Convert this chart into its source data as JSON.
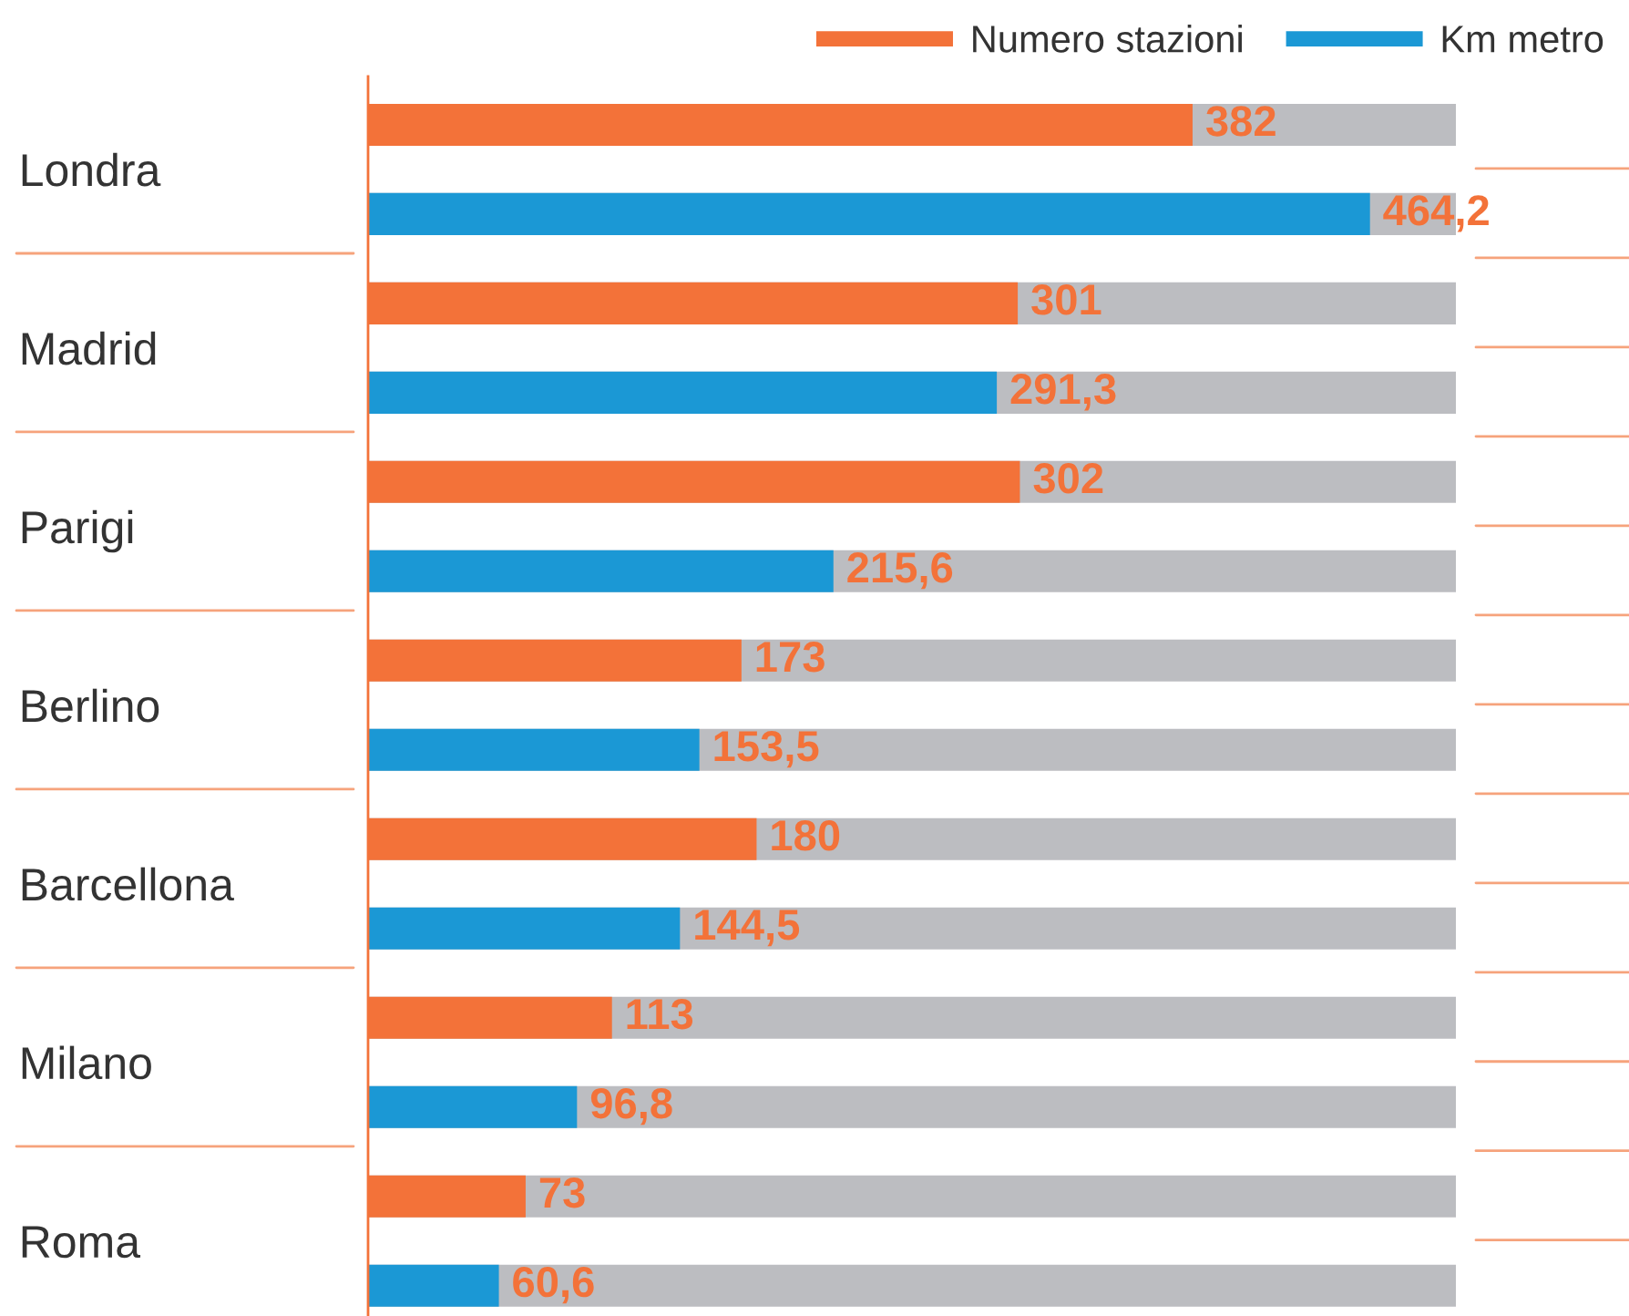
{
  "chart_data": {
    "type": "bar",
    "orientation": "horizontal",
    "categories": [
      "Londra",
      "Madrid",
      "Parigi",
      "Berlino",
      "Barcellona",
      "Milano",
      "Roma"
    ],
    "series": [
      {
        "name": "Numero stazioni",
        "color": "#f37239",
        "values": [
          382,
          301,
          302,
          173,
          180,
          113,
          73
        ],
        "value_labels": [
          "382",
          "301",
          "302",
          "173",
          "180",
          "113",
          "73"
        ]
      },
      {
        "name": "Km metro",
        "color": "#1b98d5",
        "values": [
          464.2,
          291.3,
          215.6,
          153.5,
          144.5,
          96.8,
          60.6
        ],
        "value_labels": [
          "464,2",
          "291,3",
          "215,6",
          "153,5",
          "144,5",
          "96,8",
          "60,6"
        ]
      }
    ],
    "xlim": [
      0,
      504
    ],
    "tick_labels": "y",
    "legend": "top right",
    "grid": false
  }
}
